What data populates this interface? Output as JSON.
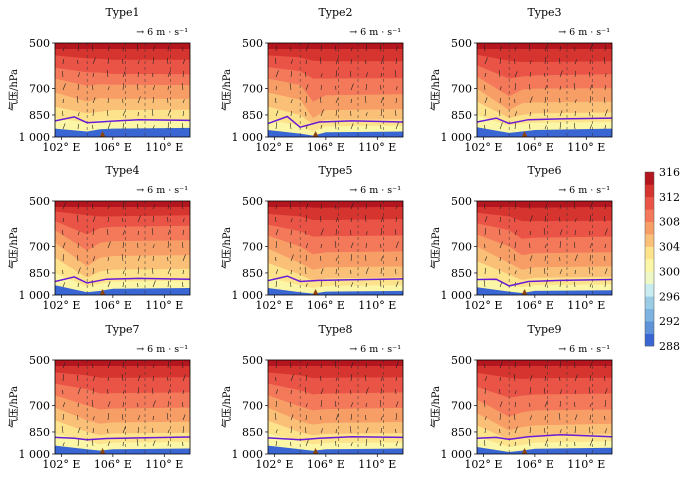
{
  "chart_data": {
    "type": "heatmap",
    "description_free": true,
    "x_ticks": [
      "102° E",
      "106° E",
      "110° E"
    ],
    "x_tick_values": [
      102,
      106,
      110
    ],
    "xlim": [
      101.5,
      112
    ],
    "y_ticks": [
      "500",
      "700",
      "850",
      "1 000"
    ],
    "y_tick_values": [
      500,
      700,
      850,
      1000
    ],
    "ylim": [
      1000,
      500
    ],
    "ylabel": "气压/hPa",
    "vector_key": "→ 6 m · s⁻¹",
    "colorbar": {
      "ticks": [
        "316",
        "312",
        "308",
        "304",
        "300",
        "296",
        "292",
        "288"
      ],
      "levels": [
        288,
        290,
        292,
        294,
        296,
        298,
        300,
        302,
        304,
        306,
        308,
        310,
        312,
        314,
        316
      ],
      "colors": [
        "#3a66d4",
        "#5e93da",
        "#7db3e0",
        "#9bcce6",
        "#c8ecf0",
        "#eef8c4",
        "#fbf7a6",
        "#fde48c",
        "#fbc078",
        "#f79e67",
        "#f3795a",
        "#ea5447",
        "#d5342f",
        "#b3161f"
      ]
    },
    "panels": [
      {
        "title": "Type1",
        "isentropes": [
          [
            510,
            515,
            520,
            520,
            520
          ],
          [
            548,
            560,
            562,
            566,
            566
          ],
          [
            600,
            620,
            622,
            628,
            630
          ],
          [
            650,
            685,
            678,
            680,
            682
          ],
          [
            720,
            770,
            752,
            755,
            755
          ],
          [
            800,
            840,
            830,
            820,
            818
          ],
          [
            870,
            900,
            880,
            880,
            880
          ],
          [
            940,
            960,
            945,
            940,
            935
          ]
        ],
        "boundary_layer": [
          888,
          862,
          900,
          892,
          880,
          885
        ]
      },
      {
        "title": "Type2",
        "isentropes": [
          [
            512,
            515,
            520,
            520,
            520
          ],
          [
            548,
            556,
            570,
            572,
            572
          ],
          [
            598,
            615,
            650,
            650,
            648
          ],
          [
            650,
            680,
            770,
            735,
            730
          ],
          [
            720,
            760,
            870,
            820,
            815
          ],
          [
            800,
            850,
            910,
            880,
            878
          ],
          [
            880,
            920,
            960,
            925,
            920
          ],
          [
            950,
            975,
            990,
            965,
            960
          ]
        ],
        "boundary_layer": [
          905,
          860,
          930,
          895,
          888,
          895
        ]
      },
      {
        "title": "Type3",
        "isentropes": [
          [
            510,
            515,
            522,
            522,
            520
          ],
          [
            545,
            570,
            575,
            575,
            572
          ],
          [
            590,
            650,
            640,
            635,
            630
          ],
          [
            640,
            740,
            705,
            700,
            698
          ],
          [
            700,
            820,
            780,
            775,
            770
          ],
          [
            770,
            870,
            850,
            840,
            835
          ],
          [
            850,
            920,
            905,
            900,
            895
          ],
          [
            930,
            970,
            960,
            950,
            940
          ]
        ],
        "boundary_layer": [
          895,
          870,
          905,
          880,
          875,
          870
        ]
      },
      {
        "title": "Type4",
        "isentropes": [
          [
            505,
            512,
            518,
            515,
            512
          ],
          [
            540,
            555,
            560,
            560,
            555
          ],
          [
            580,
            640,
            610,
            605,
            600
          ],
          [
            620,
            720,
            680,
            672,
            668
          ],
          [
            680,
            810,
            760,
            750,
            745
          ],
          [
            760,
            880,
            840,
            830,
            825
          ],
          [
            850,
            940,
            920,
            905,
            900
          ],
          [
            930,
            980,
            970,
            955,
            950
          ]
        ],
        "boundary_layer": [
          905,
          875,
          915,
          890,
          885,
          890
        ]
      },
      {
        "title": "Type5",
        "isentropes": [
          [
            515,
            520,
            525,
            525,
            522
          ],
          [
            550,
            560,
            575,
            575,
            572
          ],
          [
            595,
            625,
            650,
            648,
            645
          ],
          [
            645,
            700,
            740,
            730,
            725
          ],
          [
            710,
            790,
            830,
            815,
            810
          ],
          [
            790,
            860,
            900,
            885,
            878
          ],
          [
            880,
            930,
            950,
            935,
            930
          ],
          [
            950,
            980,
            990,
            975,
            970
          ]
        ],
        "boundary_layer": [
          900,
          870,
          905,
          898,
          893,
          888
        ]
      },
      {
        "title": "Type6",
        "isentropes": [
          [
            512,
            518,
            525,
            525,
            522
          ],
          [
            545,
            560,
            580,
            580,
            578
          ],
          [
            590,
            620,
            660,
            655,
            650
          ],
          [
            640,
            700,
            745,
            735,
            730
          ],
          [
            700,
            790,
            830,
            815,
            810
          ],
          [
            780,
            860,
            895,
            880,
            875
          ],
          [
            870,
            925,
            945,
            930,
            925
          ],
          [
            945,
            975,
            985,
            970,
            965
          ]
        ],
        "boundary_layer": [
          892,
          890,
          935,
          905,
          898,
          892
        ]
      },
      {
        "title": "Type7",
        "isentropes": [
          [
            512,
            518,
            520,
            520,
            518
          ],
          [
            548,
            560,
            570,
            570,
            568
          ],
          [
            595,
            620,
            640,
            638,
            635
          ],
          [
            648,
            700,
            720,
            715,
            710
          ],
          [
            710,
            780,
            800,
            792,
            788
          ],
          [
            780,
            850,
            870,
            860,
            855
          ],
          [
            860,
            910,
            930,
            920,
            915
          ],
          [
            940,
            965,
            975,
            965,
            960
          ]
        ],
        "boundary_layer": [
          885,
          890,
          900,
          892,
          888,
          882
        ]
      },
      {
        "title": "Type8",
        "isentropes": [
          [
            512,
            518,
            522,
            520,
            518
          ],
          [
            548,
            560,
            572,
            570,
            568
          ],
          [
            595,
            625,
            645,
            640,
            635
          ],
          [
            648,
            705,
            725,
            718,
            712
          ],
          [
            710,
            785,
            805,
            795,
            790
          ],
          [
            782,
            852,
            872,
            862,
            858
          ],
          [
            860,
            912,
            932,
            922,
            918
          ],
          [
            940,
            966,
            976,
            966,
            960
          ]
        ],
        "boundary_layer": [
          888,
          895,
          900,
          890,
          880,
          885
        ]
      },
      {
        "title": "Type9",
        "isentropes": [
          [
            512,
            515,
            520,
            520,
            518
          ],
          [
            550,
            570,
            575,
            572,
            570
          ],
          [
            610,
            660,
            650,
            645,
            640
          ],
          [
            670,
            760,
            735,
            725,
            720
          ],
          [
            740,
            840,
            820,
            810,
            800
          ],
          [
            810,
            900,
            885,
            872,
            865
          ],
          [
            880,
            950,
            935,
            920,
            910
          ],
          [
            950,
            985,
            975,
            962,
            955
          ]
        ],
        "boundary_layer": [
          890,
          885,
          898,
          880,
          868,
          880
        ]
      }
    ]
  }
}
